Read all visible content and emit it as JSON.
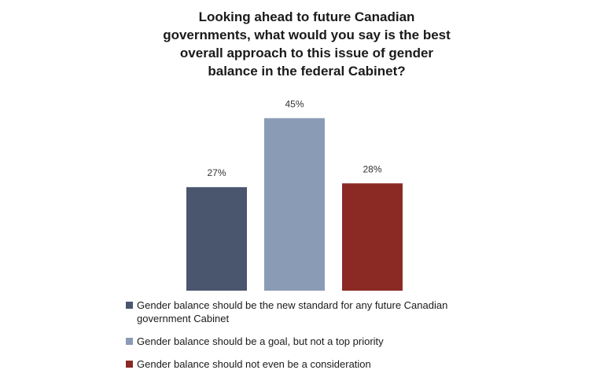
{
  "chart_data": {
    "type": "bar",
    "title": "Looking ahead to future Canadian governments, what would you say is the best overall approach to this issue of gender balance in the federal Cabinet?",
    "categories": [
      "Gender balance should be the new standard for any future Canadian government Cabinet",
      "Gender balance should be a goal, but not a top priority",
      "Gender balance should not even be a consideration"
    ],
    "values": [
      27,
      45,
      28
    ],
    "data_labels": [
      "27%",
      "45%",
      "28%"
    ],
    "colors": [
      "#4a566e",
      "#8a9bb5",
      "#8b2a25"
    ],
    "ylim": [
      0,
      50
    ],
    "grid": false,
    "legend_position": "bottom"
  }
}
